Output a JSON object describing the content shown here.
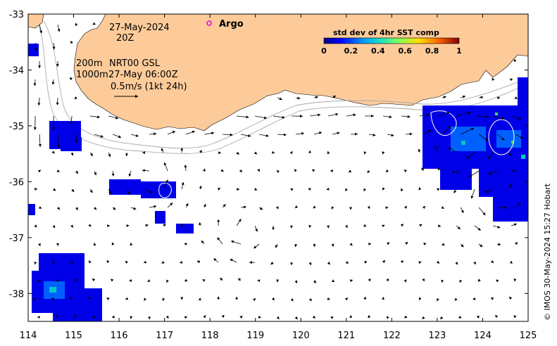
{
  "map": {
    "date": "27-May-2024",
    "time": "20Z",
    "contours_label": "200m",
    "contours_label_2": "1000m",
    "product": "NRT00 GSL",
    "product_time": "27-May 06:00Z",
    "velocity_scale": "0.5m/s (1kt 24h)",
    "argo_label": "Argo",
    "credit": "© IMOS 30-May-2024 15:27 Hobart",
    "land_color": "#fdcb9a",
    "argo_color": "#e000e0"
  },
  "colorbar": {
    "title": "std dev of 4hr SST comp",
    "ticks": [
      "0",
      "0.2",
      "0.4",
      "0.6",
      "0.8",
      "1"
    ]
  },
  "axes": {
    "lon_range": [
      114,
      125
    ],
    "lat_range": [
      -38.5,
      -33
    ],
    "x_ticks": [
      "114",
      "115",
      "116",
      "117",
      "118",
      "119",
      "120",
      "121",
      "122",
      "123",
      "124",
      "125"
    ],
    "y_ticks": [
      "-33",
      "-34",
      "-35",
      "-36",
      "-37",
      "-38"
    ]
  }
}
